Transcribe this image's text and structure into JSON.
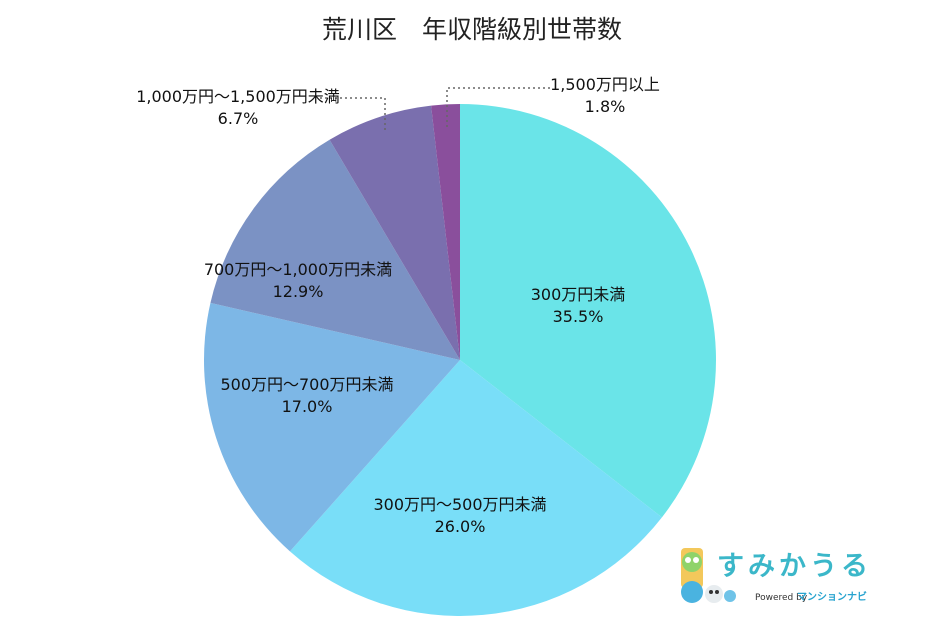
{
  "chart_data": {
    "type": "pie",
    "title": "荒川区　年収階級別世帯数",
    "slices": [
      {
        "label": "300万円未満",
        "value": 35.5,
        "value_label": "35.5%",
        "color": "#6ae4e8"
      },
      {
        "label": "300万円～500万円未満",
        "value": 26.0,
        "value_label": "26.0%",
        "color": "#79def8"
      },
      {
        "label": "500万円～700万円未満",
        "value": 17.0,
        "value_label": "17.0%",
        "color": "#7db7e6"
      },
      {
        "label": "700万円～1,000万円未満",
        "value": 12.9,
        "value_label": "12.9%",
        "color": "#7b92c4"
      },
      {
        "label": "1,000万円～1,500万円未満",
        "value": 6.7,
        "value_label": "6.7%",
        "color": "#7a6fae"
      },
      {
        "label": "1,500万円以上",
        "value": 1.8,
        "value_label": "1.8%",
        "color": "#8a4f9c"
      }
    ],
    "start": "top",
    "direction": "clockwise"
  },
  "logo": {
    "name": "すみかうる",
    "powered_by": "Powered by",
    "partner": "マンションナビ"
  }
}
